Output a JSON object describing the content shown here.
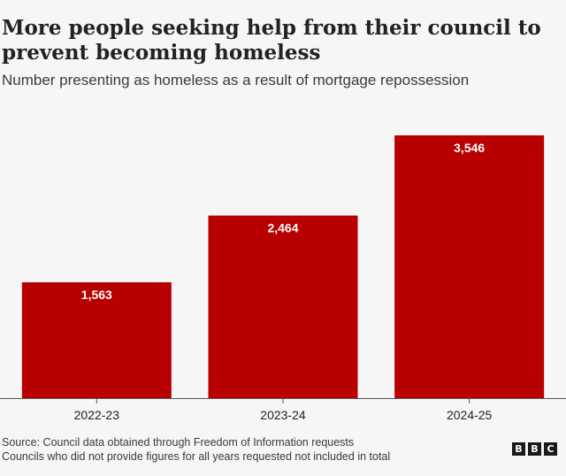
{
  "title": "More people seeking help from their council to prevent becoming homeless",
  "subtitle": "Number presenting as homeless as a result of mortgage repossession",
  "chart_data": {
    "type": "bar",
    "categories": [
      "2022-23",
      "2023-24",
      "2024-25"
    ],
    "values": [
      1563,
      2464,
      3546
    ],
    "value_labels": [
      "1,563",
      "2,464",
      "3,546"
    ],
    "title": "More people seeking help from their council to prevent becoming homeless",
    "subtitle": "Number presenting as homeless as a result of mortgage repossession",
    "ylim": [
      0,
      3546
    ],
    "grid": false,
    "bar_color": "#b80000"
  },
  "footer": {
    "source": "Source: Council data obtained through Freedom of Information requests",
    "note": "Councils who did not provide figures for all years requested not included in total"
  },
  "logo": {
    "letters": [
      "B",
      "B",
      "C"
    ]
  },
  "colors": {
    "background": "#f6f6f6",
    "bar": "#b80000",
    "value_label": "#ffffff",
    "axis": "#555555"
  }
}
